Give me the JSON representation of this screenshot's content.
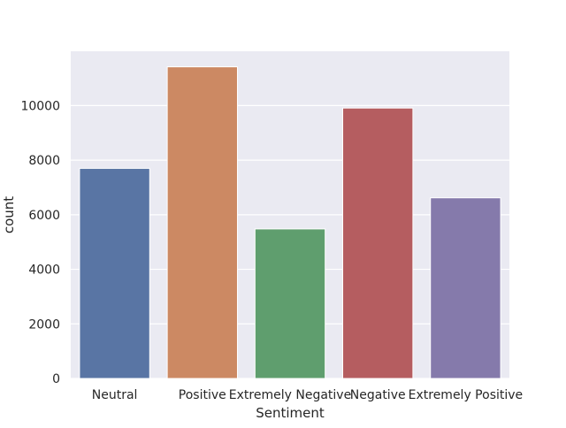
{
  "chart_data": {
    "type": "bar",
    "title": "",
    "xlabel": "Sentiment",
    "ylabel": "count",
    "categories": [
      "Neutral",
      "Positive",
      "Extremely Negative",
      "Negative",
      "Extremely Positive"
    ],
    "values": [
      7700,
      11420,
      5480,
      9910,
      6620
    ],
    "ylim": [
      0,
      11990
    ],
    "yticks": [
      0,
      2000,
      4000,
      6000,
      8000,
      10000
    ],
    "grid": true,
    "colors": [
      "#5975a4",
      "#cc8963",
      "#5f9e6e",
      "#b55d60",
      "#857aab"
    ],
    "plot_background": "#eaeaf2"
  }
}
